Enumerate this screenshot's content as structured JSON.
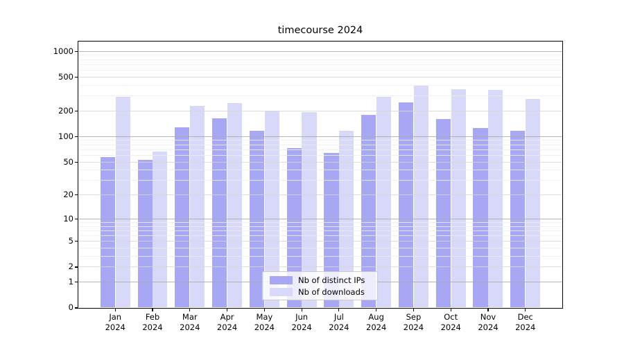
{
  "figure": {
    "background": "#ffffff"
  },
  "chart_data": {
    "type": "bar",
    "title": "timecourse 2024",
    "categories": [
      "Jan 2024",
      "Feb 2024",
      "Mar 2024",
      "Apr 2024",
      "May 2024",
      "Jun 2024",
      "Jul 2024",
      "Aug 2024",
      "Sep 2024",
      "Oct 2024",
      "Nov 2024",
      "Dec 2024"
    ],
    "series": [
      {
        "name": "Nb of distinct IPs",
        "color": "#a7a7f4",
        "values": [
          57,
          52,
          128,
          164,
          117,
          72,
          63,
          180,
          252,
          159,
          126,
          117
        ]
      },
      {
        "name": "Nb of downloads",
        "color": "#d8d8f8",
        "values": [
          292,
          66,
          227,
          245,
          201,
          192,
          117,
          290,
          403,
          360,
          353,
          277
        ]
      }
    ],
    "yscale": "symlog (log10 of 1+value)",
    "yticks": [
      0,
      1,
      2,
      5,
      10,
      20,
      50,
      100,
      200,
      500,
      1000
    ],
    "ylim": [
      0,
      1230
    ],
    "xlabel": "",
    "ylabel": "",
    "grid": "horizontal, major and minor",
    "legend_position": "lower center inside axes",
    "grid_colors": {
      "decade": "#a9a9a9",
      "labeled": "#d6d6d6",
      "minor": "#ededed"
    }
  }
}
